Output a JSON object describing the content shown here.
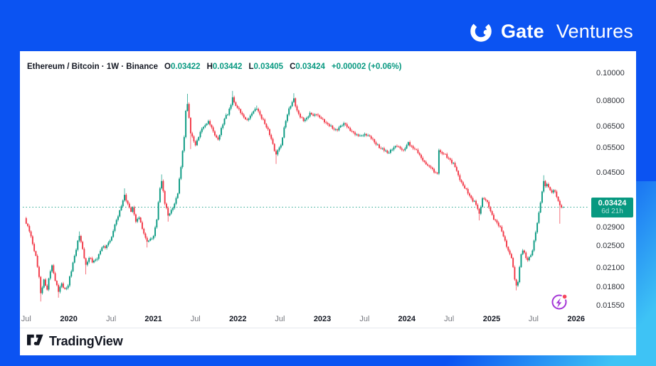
{
  "brand": {
    "blue": "#0B53F2",
    "corner_cyan": "#3EC3F5",
    "gate_bold": "Gate",
    "gate_light": "Ventures"
  },
  "header": {
    "title": "Ethereum / Bitcoin · 1W · Binance",
    "ohlc": [
      {
        "label": "O",
        "value": "0.03422"
      },
      {
        "label": "H",
        "value": "0.03442"
      },
      {
        "label": "L",
        "value": "0.03405"
      },
      {
        "label": "C",
        "value": "0.03424"
      }
    ],
    "change": "+0.00002 (+0.06%)"
  },
  "price_badge": {
    "price": "0.03424",
    "countdown": "6d 21h",
    "color": "#089981"
  },
  "footer": {
    "brand": "TradingView"
  },
  "colors": {
    "up": "#089981",
    "down": "#F23645",
    "dotted_line": "#089981",
    "text_dark": "#131722",
    "text_gray": "#76787F"
  },
  "chart_data": {
    "type": "candlestick",
    "title": "Ethereum / Bitcoin",
    "exchange": "Binance",
    "timeframe": "1W",
    "scale": "log",
    "grid": "off",
    "legend_position": "none",
    "x_range_labels": [
      "Jul 2019",
      "Jan 2026"
    ],
    "y_axis_range": [
      0.0147,
      0.1047
    ],
    "last_price_line": 0.03424,
    "current_candle": {
      "open": 0.03422,
      "high": 0.03442,
      "low": 0.03405,
      "close": 0.03424
    },
    "y_ticks": [
      {
        "text": "0.10000",
        "value": 0.1
      },
      {
        "text": "0.08000",
        "value": 0.08
      },
      {
        "text": "0.06500",
        "value": 0.065
      },
      {
        "text": "0.05500",
        "value": 0.055
      },
      {
        "text": "0.04500",
        "value": 0.045
      },
      {
        "text": "0.02900",
        "value": 0.029
      },
      {
        "text": "0.02500",
        "value": 0.025
      },
      {
        "text": "0.02100",
        "value": 0.021
      },
      {
        "text": "0.01800",
        "value": 0.018
      },
      {
        "text": "0.01550",
        "value": 0.0155
      }
    ],
    "x_ticks": [
      {
        "text": "Jul",
        "w": 0,
        "bold": false
      },
      {
        "text": "2020",
        "w": 26.4,
        "bold": true
      },
      {
        "text": "Jul",
        "w": 52.7,
        "bold": false
      },
      {
        "text": "2021",
        "w": 78.9,
        "bold": true
      },
      {
        "text": "Jul",
        "w": 105.0,
        "bold": false
      },
      {
        "text": "2022",
        "w": 131.3,
        "bold": true
      },
      {
        "text": "Jul",
        "w": 157.4,
        "bold": false
      },
      {
        "text": "2023",
        "w": 183.7,
        "bold": true
      },
      {
        "text": "Jul",
        "w": 209.9,
        "bold": false
      },
      {
        "text": "2024",
        "w": 236.1,
        "bold": true
      },
      {
        "text": "Jul",
        "w": 262.3,
        "bold": false
      },
      {
        "text": "2025",
        "w": 288.7,
        "bold": true
      },
      {
        "text": "Jul",
        "w": 314.7,
        "bold": false
      },
      {
        "text": "2026",
        "w": 341.1,
        "bold": true
      }
    ],
    "anchors": [
      [
        0,
        0.03
      ],
      [
        2,
        0.0282
      ],
      [
        4,
        0.0255
      ],
      [
        6,
        0.0232
      ],
      [
        8,
        0.0196
      ],
      [
        9,
        0.0172,
        null,
        0.0161
      ],
      [
        10,
        0.018
      ],
      [
        11,
        0.0192
      ],
      [
        13,
        0.0177
      ],
      [
        15,
        0.0205
      ],
      [
        16,
        0.0215
      ],
      [
        18,
        0.019
      ],
      [
        20,
        0.0174,
        null,
        0.0166
      ],
      [
        22,
        0.0186
      ],
      [
        24,
        0.0178
      ],
      [
        26,
        0.0183
      ],
      [
        28,
        0.0205
      ],
      [
        30,
        0.0232
      ],
      [
        32,
        0.0262
      ],
      [
        33,
        0.0272,
        0.0282
      ],
      [
        35,
        0.0245
      ],
      [
        37,
        0.0216,
        null,
        0.02
      ],
      [
        39,
        0.0228
      ],
      [
        41,
        0.022
      ],
      [
        43,
        0.0225
      ],
      [
        45,
        0.0235
      ],
      [
        47,
        0.0248
      ],
      [
        49,
        0.0247
      ],
      [
        51,
        0.0258
      ],
      [
        53,
        0.027
      ],
      [
        55,
        0.0298
      ],
      [
        57,
        0.0318
      ],
      [
        59,
        0.0345
      ],
      [
        61,
        0.0378,
        0.0398
      ],
      [
        63,
        0.0352
      ],
      [
        65,
        0.033
      ],
      [
        66,
        0.0342
      ],
      [
        68,
        0.0305
      ],
      [
        70,
        0.0315
      ],
      [
        72,
        0.0288
      ],
      [
        74,
        0.0268
      ],
      [
        75,
        0.026,
        null,
        0.0248
      ],
      [
        77,
        0.0266
      ],
      [
        79,
        0.0272
      ],
      [
        81,
        0.031
      ],
      [
        83,
        0.0398
      ],
      [
        84,
        0.0422,
        0.0445
      ],
      [
        86,
        0.0352
      ],
      [
        88,
        0.032,
        null,
        0.0305
      ],
      [
        90,
        0.0335
      ],
      [
        92,
        0.0352
      ],
      [
        94,
        0.0382
      ],
      [
        96,
        0.0472
      ],
      [
        98,
        0.06
      ],
      [
        99,
        0.074
      ],
      [
        100,
        0.0782,
        0.0848
      ],
      [
        101,
        0.07
      ],
      [
        102,
        0.0618,
        null,
        0.0545
      ],
      [
        104,
        0.058
      ],
      [
        105,
        0.0562
      ],
      [
        107,
        0.06
      ],
      [
        109,
        0.0642
      ],
      [
        111,
        0.066
      ],
      [
        113,
        0.0682
      ],
      [
        115,
        0.0648
      ],
      [
        116,
        0.0628
      ],
      [
        118,
        0.0598
      ],
      [
        119,
        0.0588
      ],
      [
        121,
        0.0645
      ],
      [
        123,
        0.0695
      ],
      [
        125,
        0.0718
      ],
      [
        127,
        0.0775
      ],
      [
        128,
        0.0825,
        0.0868
      ],
      [
        129,
        0.0792
      ],
      [
        131,
        0.0758
      ],
      [
        133,
        0.0728
      ],
      [
        135,
        0.0702
      ],
      [
        137,
        0.0688
      ],
      [
        139,
        0.0712
      ],
      [
        141,
        0.0738
      ],
      [
        143,
        0.0752,
        0.0772
      ],
      [
        145,
        0.0718
      ],
      [
        147,
        0.069
      ],
      [
        149,
        0.0648
      ],
      [
        151,
        0.061
      ],
      [
        153,
        0.0568
      ],
      [
        155,
        0.0522,
        null,
        0.0484
      ],
      [
        156,
        0.054
      ],
      [
        158,
        0.0562
      ],
      [
        160,
        0.0648
      ],
      [
        162,
        0.0718
      ],
      [
        164,
        0.0768
      ],
      [
        166,
        0.0818,
        0.0852
      ],
      [
        168,
        0.0742
      ],
      [
        170,
        0.0702
      ],
      [
        172,
        0.0682
      ],
      [
        174,
        0.07
      ],
      [
        176,
        0.0728
      ],
      [
        178,
        0.0712
      ],
      [
        180,
        0.0718
      ],
      [
        182,
        0.0702
      ],
      [
        184,
        0.0692
      ],
      [
        186,
        0.0672
      ],
      [
        188,
        0.0655
      ],
      [
        190,
        0.0642
      ],
      [
        192,
        0.0638
      ],
      [
        194,
        0.0648
      ],
      [
        196,
        0.0658
      ],
      [
        198,
        0.0665
      ],
      [
        200,
        0.0645
      ],
      [
        202,
        0.0628
      ],
      [
        204,
        0.0612
      ],
      [
        206,
        0.0605
      ],
      [
        208,
        0.0608
      ],
      [
        210,
        0.0615
      ],
      [
        212,
        0.0608
      ],
      [
        214,
        0.0592
      ],
      [
        216,
        0.0575
      ],
      [
        218,
        0.0565
      ],
      [
        220,
        0.0548
      ],
      [
        222,
        0.0538
      ],
      [
        224,
        0.0528
      ],
      [
        226,
        0.0542
      ],
      [
        228,
        0.0552
      ],
      [
        230,
        0.0556
      ],
      [
        232,
        0.0548
      ],
      [
        234,
        0.054
      ],
      [
        236,
        0.0562
      ],
      [
        237,
        0.0576
      ],
      [
        239,
        0.0558
      ],
      [
        241,
        0.0545
      ],
      [
        243,
        0.0528
      ],
      [
        245,
        0.0508
      ],
      [
        247,
        0.0492
      ],
      [
        249,
        0.0478
      ],
      [
        251,
        0.047
      ],
      [
        253,
        0.0452
      ],
      [
        255,
        0.0448
      ],
      [
        256,
        0.054
      ],
      [
        257,
        0.0532
      ],
      [
        259,
        0.0524
      ],
      [
        261,
        0.0508
      ],
      [
        263,
        0.05
      ],
      [
        265,
        0.0488
      ],
      [
        267,
        0.0458
      ],
      [
        268,
        0.0442
      ],
      [
        270,
        0.0418
      ],
      [
        272,
        0.0398
      ],
      [
        274,
        0.0382
      ],
      [
        276,
        0.0368
      ],
      [
        278,
        0.036
      ],
      [
        280,
        0.0338
      ],
      [
        281,
        0.0325,
        null,
        0.0308
      ],
      [
        283,
        0.0368
      ],
      [
        285,
        0.0362
      ],
      [
        287,
        0.0342
      ],
      [
        289,
        0.0322
      ],
      [
        291,
        0.0308
      ],
      [
        293,
        0.0295
      ],
      [
        295,
        0.0282
      ],
      [
        297,
        0.0262
      ],
      [
        299,
        0.0242
      ],
      [
        301,
        0.0228
      ],
      [
        302,
        0.0212
      ],
      [
        303,
        0.0192
      ],
      [
        304,
        0.0183,
        null,
        0.0176
      ],
      [
        305,
        0.0188
      ],
      [
        306,
        0.0212
      ],
      [
        307,
        0.0235
      ],
      [
        308,
        0.0242
      ],
      [
        309,
        0.0238
      ],
      [
        310,
        0.0228
      ],
      [
        311,
        0.0224
      ],
      [
        312,
        0.023
      ],
      [
        313,
        0.0233
      ],
      [
        314,
        0.0242
      ],
      [
        315,
        0.0262
      ],
      [
        316,
        0.028
      ],
      [
        317,
        0.0302
      ],
      [
        318,
        0.0328
      ],
      [
        319,
        0.0355
      ],
      [
        320,
        0.0388
      ],
      [
        321,
        0.0422,
        0.0442
      ],
      [
        322,
        0.0405
      ],
      [
        323,
        0.0412
      ],
      [
        324,
        0.0402
      ],
      [
        325,
        0.0392
      ],
      [
        326,
        0.0385
      ],
      [
        327,
        0.0392
      ],
      [
        328,
        0.0388
      ],
      [
        329,
        0.0372
      ],
      [
        330,
        0.036
      ],
      [
        331,
        0.0348,
        null,
        0.03
      ],
      [
        332,
        0.0342
      ]
    ]
  }
}
